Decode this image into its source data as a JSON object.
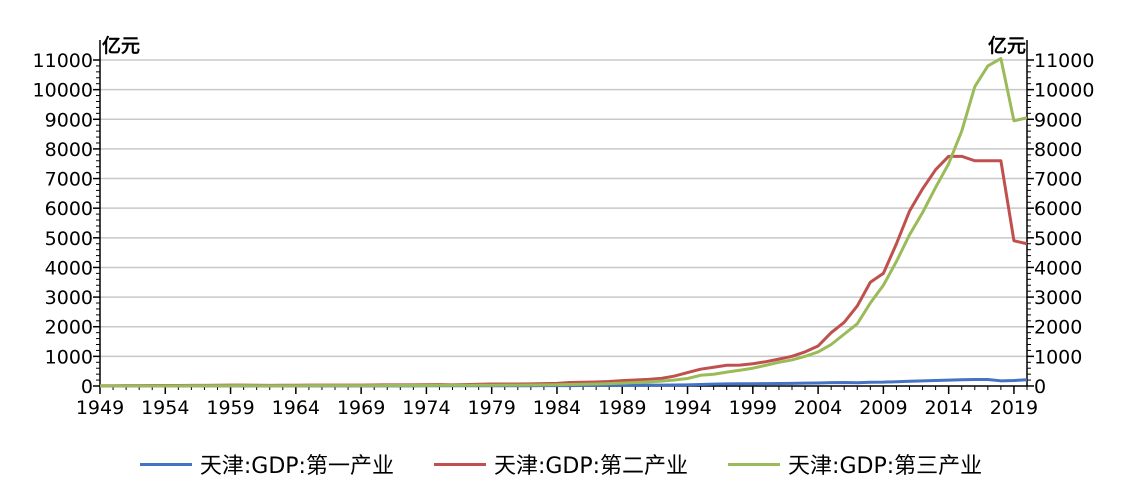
{
  "chart_data": {
    "type": "line",
    "y_unit_left": "亿元",
    "y_unit_right": "亿元",
    "xlim": [
      1949,
      2020
    ],
    "ylim": [
      0,
      11000
    ],
    "y_ticks": [
      0,
      1000,
      2000,
      3000,
      4000,
      5000,
      6000,
      7000,
      8000,
      9000,
      10000,
      11000
    ],
    "x_ticks": [
      1949,
      1954,
      1959,
      1964,
      1969,
      1974,
      1979,
      1984,
      1989,
      1994,
      1999,
      2004,
      2009,
      2014,
      2019
    ],
    "grid": true,
    "legend_position": "bottom",
    "x": [
      1949,
      1950,
      1951,
      1952,
      1953,
      1954,
      1955,
      1956,
      1957,
      1958,
      1959,
      1960,
      1961,
      1962,
      1963,
      1964,
      1965,
      1966,
      1967,
      1968,
      1969,
      1970,
      1971,
      1972,
      1973,
      1974,
      1975,
      1976,
      1977,
      1978,
      1979,
      1980,
      1981,
      1982,
      1983,
      1984,
      1985,
      1986,
      1987,
      1988,
      1989,
      1990,
      1991,
      1992,
      1993,
      1994,
      1995,
      1996,
      1997,
      1998,
      1999,
      2000,
      2001,
      2002,
      2003,
      2004,
      2005,
      2006,
      2007,
      2008,
      2009,
      2010,
      2011,
      2012,
      2013,
      2014,
      2015,
      2016,
      2017,
      2018,
      2019,
      2020
    ],
    "series": [
      {
        "name": "天津:GDP:第一产业",
        "color": "#4472C4",
        "values": [
          2,
          2,
          3,
          3,
          3,
          3,
          3,
          3,
          3,
          4,
          4,
          4,
          4,
          4,
          4,
          5,
          5,
          5,
          5,
          5,
          5,
          6,
          6,
          6,
          6,
          7,
          7,
          7,
          7,
          8,
          9,
          9,
          10,
          10,
          11,
          11,
          13,
          15,
          17,
          19,
          21,
          27,
          29,
          30,
          35,
          40,
          50,
          62,
          70,
          75,
          78,
          80,
          84,
          88,
          95,
          100,
          112,
          118,
          110,
          125,
          130,
          145,
          160,
          172,
          185,
          200,
          210,
          220,
          218,
          175,
          185,
          210
        ]
      },
      {
        "name": "天津:GDP:第二产业",
        "color": "#C0504D",
        "values": [
          10,
          10,
          12,
          14,
          15,
          16,
          17,
          20,
          22,
          26,
          29,
          30,
          24,
          22,
          24,
          26,
          28,
          30,
          29,
          28,
          31,
          35,
          37,
          38,
          40,
          42,
          45,
          40,
          45,
          57,
          66,
          66,
          68,
          70,
          80,
          87,
          117,
          125,
          136,
          153,
          183,
          201,
          224,
          258,
          336,
          453,
          567,
          634,
          700,
          706,
          750,
          820,
          907,
          1002,
          1150,
          1350,
          1800,
          2150,
          2700,
          3500,
          3800,
          4800,
          5900,
          6650,
          7300,
          7750,
          7750,
          7600,
          7600,
          7600,
          4900,
          4800
        ]
      },
      {
        "name": "天津:GDP:第三产业",
        "color": "#9BBB59",
        "values": [
          3,
          3,
          4,
          5,
          5,
          6,
          6,
          7,
          8,
          9,
          10,
          11,
          9,
          9,
          9,
          10,
          11,
          12,
          12,
          12,
          13,
          14,
          15,
          16,
          17,
          18,
          20,
          20,
          21,
          24,
          27,
          28,
          30,
          33,
          37,
          42,
          50,
          58,
          68,
          80,
          95,
          116,
          141,
          165,
          203,
          253,
          361,
          396,
          468,
          530,
          600,
          700,
          800,
          880,
          1000,
          1150,
          1400,
          1750,
          2100,
          2800,
          3400,
          4200,
          5100,
          5850,
          6700,
          7500,
          8600,
          10100,
          10800,
          11050,
          8950,
          9050
        ]
      }
    ]
  }
}
